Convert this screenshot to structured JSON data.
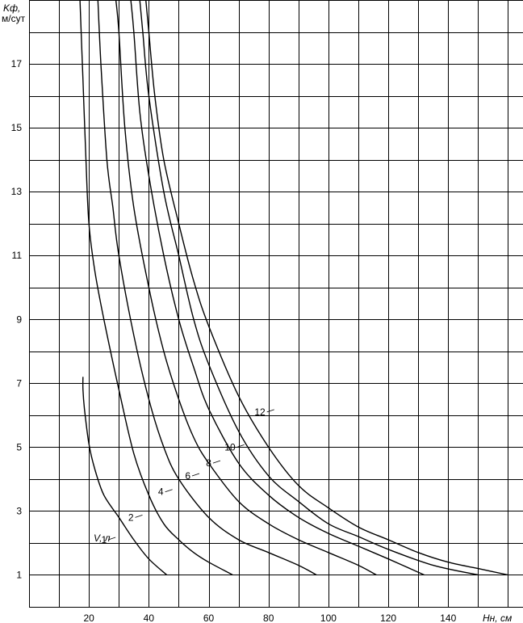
{
  "chart_data": {
    "type": "line",
    "ylabel": "Kф,",
    "yunit": "м/сут",
    "xlabel": "Hн, см",
    "xlim": [
      0,
      165
    ],
    "ylim": [
      0,
      19
    ],
    "x_ticks": [
      20,
      40,
      60,
      80,
      100,
      120,
      140
    ],
    "y_ticks": [
      1,
      3,
      5,
      7,
      9,
      11,
      13,
      15,
      17
    ],
    "x_grid_step": 10,
    "y_grid_step": 1,
    "grid": true,
    "curve_legend_label": "V, л",
    "series": [
      {
        "name": "1",
        "points": [
          [
            18,
            7.2
          ],
          [
            18,
            6.8
          ],
          [
            18.5,
            6.2
          ],
          [
            20,
            5.1
          ],
          [
            22,
            4.3
          ],
          [
            25,
            3.5
          ],
          [
            30,
            2.8
          ],
          [
            35,
            2.1
          ],
          [
            40,
            1.5
          ],
          [
            46,
            1.0
          ]
        ],
        "label_at": [
          27,
          2.1
        ]
      },
      {
        "name": "2",
        "points": [
          [
            17,
            19
          ],
          [
            18,
            16.5
          ],
          [
            19,
            14
          ],
          [
            20,
            12
          ],
          [
            22,
            10.5
          ],
          [
            25,
            9
          ],
          [
            30,
            6.8
          ],
          [
            35,
            4.8
          ],
          [
            40,
            3.5
          ],
          [
            45,
            2.6
          ],
          [
            50,
            2.1
          ],
          [
            55,
            1.7
          ],
          [
            60,
            1.4
          ],
          [
            68,
            1.0
          ]
        ],
        "label_at": [
          36,
          2.8
        ]
      },
      {
        "name": "4",
        "points": [
          [
            23,
            19
          ],
          [
            24,
            17
          ],
          [
            26,
            14
          ],
          [
            28,
            12.5
          ],
          [
            30,
            11
          ],
          [
            35,
            8.5
          ],
          [
            40,
            6.5
          ],
          [
            45,
            5
          ],
          [
            50,
            4
          ],
          [
            60,
            2.8
          ],
          [
            70,
            2.1
          ],
          [
            80,
            1.7
          ],
          [
            90,
            1.3
          ],
          [
            96,
            1.0
          ]
        ],
        "label_at": [
          46,
          3.6
        ]
      },
      {
        "name": "6",
        "points": [
          [
            29,
            19
          ],
          [
            30,
            18
          ],
          [
            32,
            15
          ],
          [
            35,
            12.5
          ],
          [
            40,
            10
          ],
          [
            45,
            8
          ],
          [
            50,
            6.5
          ],
          [
            55,
            5.3
          ],
          [
            60,
            4.5
          ],
          [
            70,
            3.3
          ],
          [
            80,
            2.6
          ],
          [
            90,
            2.1
          ],
          [
            100,
            1.7
          ],
          [
            110,
            1.3
          ],
          [
            116,
            1.0
          ]
        ],
        "label_at": [
          55,
          4.1
        ]
      },
      {
        "name": "8",
        "points": [
          [
            34,
            19
          ],
          [
            35,
            18
          ],
          [
            37,
            15.5
          ],
          [
            40,
            13.5
          ],
          [
            45,
            11
          ],
          [
            50,
            9
          ],
          [
            55,
            7.5
          ],
          [
            60,
            6.2
          ],
          [
            70,
            4.5
          ],
          [
            80,
            3.5
          ],
          [
            90,
            2.8
          ],
          [
            100,
            2.3
          ],
          [
            110,
            1.9
          ],
          [
            120,
            1.5
          ],
          [
            132,
            1.0
          ]
        ],
        "label_at": [
          62,
          4.5
        ]
      },
      {
        "name": "10",
        "points": [
          [
            37,
            19
          ],
          [
            38,
            18
          ],
          [
            40,
            16
          ],
          [
            45,
            13
          ],
          [
            50,
            11
          ],
          [
            55,
            9
          ],
          [
            60,
            7.6
          ],
          [
            70,
            5.5
          ],
          [
            80,
            4.1
          ],
          [
            90,
            3.3
          ],
          [
            100,
            2.6
          ],
          [
            110,
            2.2
          ],
          [
            120,
            1.8
          ],
          [
            135,
            1.3
          ],
          [
            150,
            1.0
          ]
        ],
        "label_at": [
          70,
          5.0
        ]
      },
      {
        "name": "12",
        "points": [
          [
            39,
            19
          ],
          [
            40,
            18
          ],
          [
            42,
            16
          ],
          [
            45,
            14
          ],
          [
            50,
            12
          ],
          [
            55,
            10.2
          ],
          [
            60,
            8.8
          ],
          [
            70,
            6.6
          ],
          [
            80,
            5
          ],
          [
            90,
            3.8
          ],
          [
            100,
            3.1
          ],
          [
            110,
            2.5
          ],
          [
            120,
            2.1
          ],
          [
            130,
            1.7
          ],
          [
            140,
            1.4
          ],
          [
            150,
            1.2
          ],
          [
            160,
            1.0
          ]
        ],
        "label_at": [
          80,
          6.1
        ]
      }
    ]
  }
}
